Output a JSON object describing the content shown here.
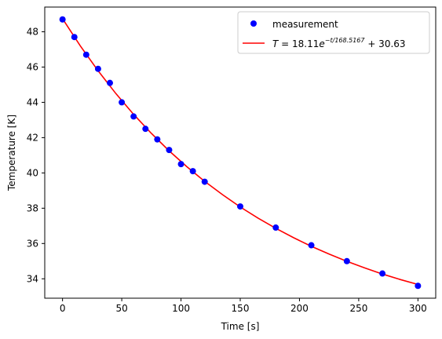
{
  "chart_data": {
    "type": "scatter",
    "title": "",
    "xlabel": "Time [s]",
    "ylabel": "Temperature [K]",
    "xlim": [
      -15,
      315
    ],
    "ylim": [
      32.9,
      49.4
    ],
    "xticks": [
      0,
      50,
      100,
      150,
      200,
      250,
      300
    ],
    "yticks": [
      34,
      36,
      38,
      40,
      42,
      44,
      46,
      48
    ],
    "grid": false,
    "legend_position": "top-right",
    "series": [
      {
        "name": "measurement",
        "kind": "points",
        "color": "#0000ff",
        "x": [
          0,
          10,
          20,
          30,
          40,
          50,
          60,
          70,
          80,
          90,
          100,
          110,
          120,
          150,
          180,
          210,
          240,
          270,
          300
        ],
        "y": [
          48.7,
          47.7,
          46.7,
          45.9,
          45.1,
          44.0,
          43.2,
          42.5,
          41.9,
          41.3,
          40.5,
          40.1,
          39.5,
          38.1,
          36.9,
          35.9,
          35.0,
          34.3,
          33.6
        ]
      },
      {
        "name": "T = 18.11e^(−t/168.5167) + 30.63",
        "kind": "fit-line",
        "color": "#ff0000",
        "x": [
          0,
          15,
          30,
          45,
          60,
          75,
          90,
          105,
          120,
          135,
          150,
          165,
          180,
          195,
          210,
          225,
          240,
          255,
          270,
          285,
          300
        ],
        "y": [
          48.74,
          47.2,
          45.79,
          44.5,
          43.32,
          42.24,
          41.25,
          40.35,
          39.52,
          38.77,
          38.07,
          37.44,
          36.86,
          36.33,
          35.84,
          35.4,
          34.99,
          34.62,
          34.27,
          33.96,
          33.68
        ]
      }
    ],
    "legend": {
      "entry1_text": "measurement",
      "entry2_T": "T",
      "entry2_eq": " = 18.11",
      "entry2_e": "e",
      "entry2_exp": "−t/168.5167",
      "entry2_tail": " + 30.63"
    }
  }
}
